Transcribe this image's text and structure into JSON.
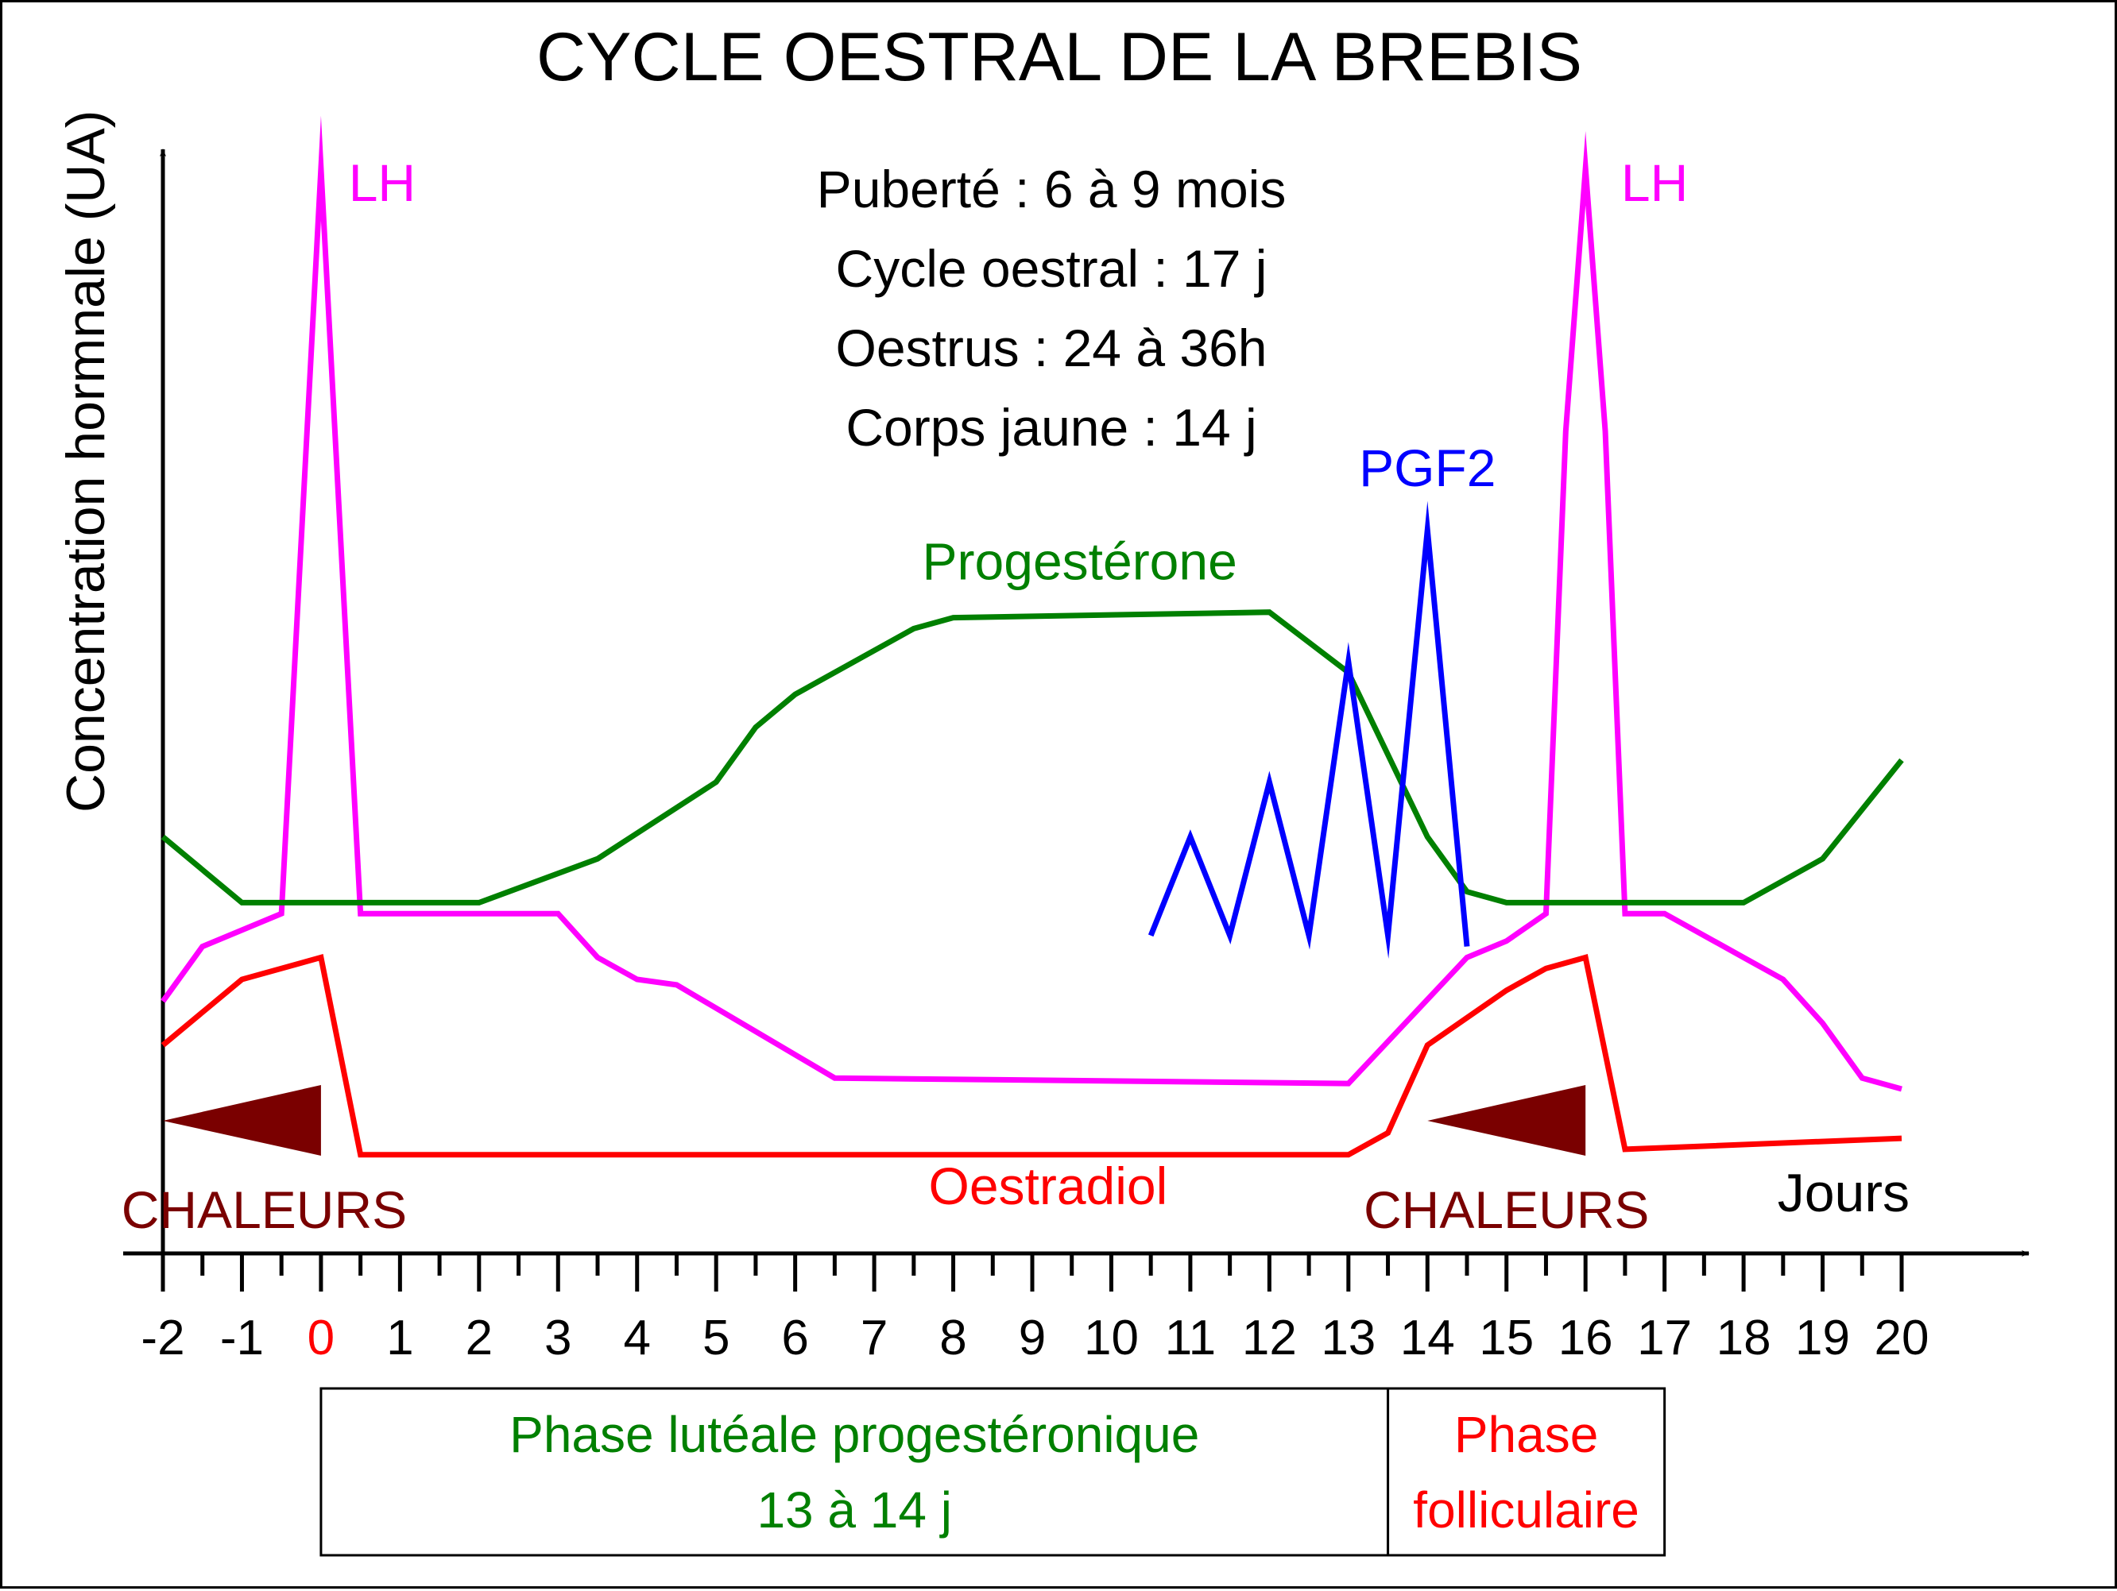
{
  "chart_data": {
    "type": "line",
    "title": "CYCLE OESTRAL DE LA BREBIS",
    "ylabel": "Concentration hormnale (UA)",
    "xlabel": "Jours",
    "x_ticks": [
      "-2",
      "-1",
      "0",
      "1",
      "2",
      "3",
      "4",
      "5",
      "6",
      "7",
      "8",
      "9",
      "10",
      "11",
      "12",
      "13",
      "14",
      "15",
      "16",
      "17",
      "18",
      "19",
      "20"
    ],
    "highlight_tick": "0",
    "xlim": [
      -2,
      20
    ],
    "ylim": [
      0,
      100
    ],
    "grid": false,
    "info_lines": [
      "Puberté : 6 à 9 mois",
      "Cycle oestral : 17 j",
      "Oestrus : 24 à 36h",
      "Corps jaune : 14 j"
    ],
    "series": [
      {
        "name": "LH",
        "color": "#ff00ff",
        "x": [
          -2,
          -1.5,
          -0.5,
          0,
          0.5,
          3,
          3.5,
          4,
          4.5,
          6.5,
          13,
          14.5,
          15,
          15.5,
          15.75,
          16,
          16.25,
          16.5,
          17,
          18,
          18.5,
          19,
          19.5,
          20
        ],
        "y": [
          23,
          28,
          31,
          99,
          31,
          31,
          27,
          25,
          24.5,
          16,
          15.5,
          27,
          28.5,
          31,
          75,
          99,
          75,
          31,
          31,
          27,
          25,
          21,
          16,
          15
        ]
      },
      {
        "name": "Progestérone",
        "color": "#008000",
        "x": [
          -2,
          -1,
          2,
          3.5,
          5,
          5.5,
          6,
          7.5,
          8,
          12,
          13,
          14,
          14.5,
          15,
          17,
          18,
          19,
          20
        ],
        "y": [
          38,
          32,
          32,
          36,
          43,
          48,
          51,
          57,
          58,
          58.5,
          53,
          38,
          33,
          32,
          32,
          32,
          36,
          45
        ]
      },
      {
        "name": "PGF2",
        "color": "#0000ff",
        "x": [
          10.5,
          11,
          11.5,
          12,
          12.5,
          13,
          13.5,
          14,
          14.5
        ],
        "y": [
          29,
          38,
          29,
          43,
          29,
          54,
          29,
          66,
          28
        ]
      },
      {
        "name": "Oestradiol",
        "color": "#ff0000",
        "x": [
          -2,
          -1,
          0,
          0.5,
          13,
          13.5,
          14,
          15,
          15.5,
          16,
          16.5,
          20
        ],
        "y": [
          19,
          25,
          27,
          9,
          9,
          11,
          19,
          24,
          26,
          27,
          9.5,
          10.5
        ]
      }
    ],
    "heat_labels": [
      "CHALEURS",
      "CHALEURS"
    ],
    "heat_periods": [
      [
        -2,
        0
      ],
      [
        14,
        16
      ]
    ],
    "phases": [
      {
        "label_lines": [
          "Phase lutéale progestéronique",
          "13 à 14 j"
        ],
        "start": 0,
        "end": 13.5,
        "color": "#008000"
      },
      {
        "label_lines": [
          "Phase",
          "folliculaire"
        ],
        "start": 13.5,
        "end": 17,
        "color": "#ff0000"
      }
    ],
    "colors": {
      "heat": "#7a0000",
      "axis": "#000000",
      "highlight_tick": "#ff0000"
    }
  }
}
